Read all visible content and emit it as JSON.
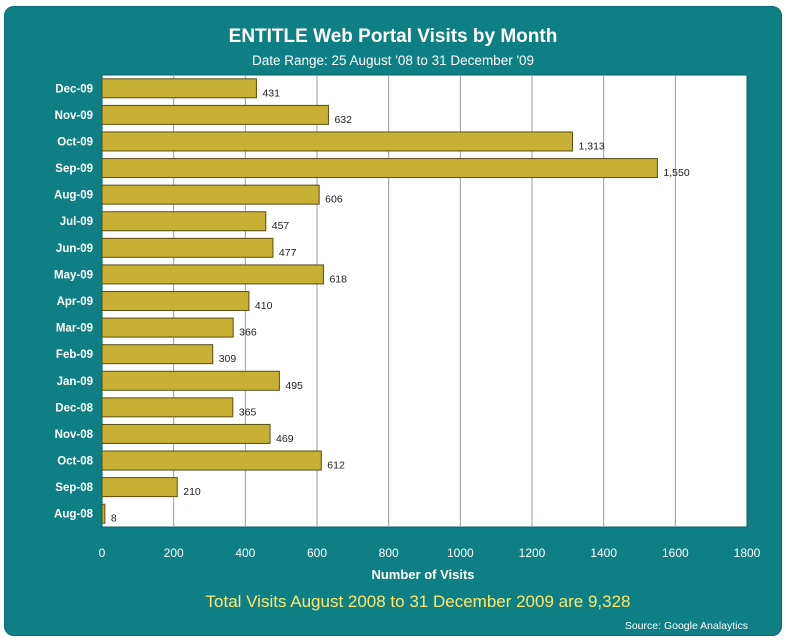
{
  "chart_data": {
    "type": "bar",
    "orientation": "horizontal",
    "title": "ENTITLE  Web Portal Visits by Month",
    "subtitle": "Date Range: 25 August  '08 to 31 December '09",
    "xlabel": "Number of  Visits",
    "ylabel": "",
    "categories": [
      "Dec-09",
      "Nov-09",
      "Oct-09",
      "Sep-09",
      "Aug-09",
      "Jul-09",
      "Jun-09",
      "May-09",
      "Apr-09",
      "Mar-09",
      "Feb-09",
      "Jan-09",
      "Dec-08",
      "Nov-08",
      "Oct-08",
      "Sep-08",
      "Aug-08"
    ],
    "values": [
      431,
      632,
      1313,
      1550,
      606,
      457,
      477,
      618,
      410,
      366,
      309,
      495,
      365,
      469,
      612,
      210,
      8
    ],
    "data_labels": [
      "431",
      "632",
      "1,313",
      "1,550",
      "606",
      "457",
      "477",
      "618",
      "410",
      "366",
      "309",
      "495",
      "365",
      "469",
      "612",
      "210",
      "8"
    ],
    "xlim": [
      0,
      1800
    ],
    "x_ticks": [
      "0",
      "200",
      "400",
      "600",
      "800",
      "1000",
      "1200",
      "1400",
      "1600",
      "1800"
    ],
    "grid": "vertical",
    "bar_color": "#c8b035"
  },
  "footer": {
    "total_text": "Total Visits August 2008 to 31 December 2009 are 9,328"
  },
  "source": "Source: Google Analaytics",
  "colors": {
    "frame": "#0f7f86",
    "plot_bg": "#ffffff",
    "footer_text": "#ffe66b"
  }
}
